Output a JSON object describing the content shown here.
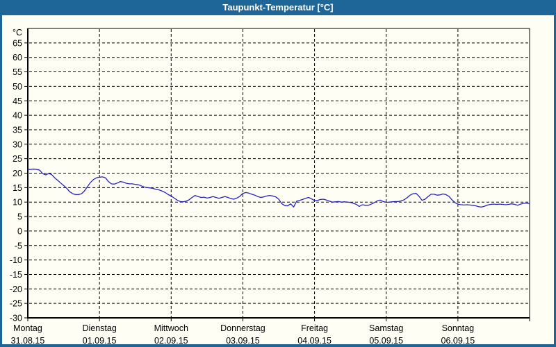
{
  "title_bar": {
    "title": "Taupunkt-Temperatur [°C]"
  },
  "colors": {
    "titlebar_bg": "#1e6598",
    "frame": "#1e6598",
    "content_bg": "#fffef5",
    "grid": "#000000",
    "axis": "#000000",
    "series_line": "#2222c0",
    "title_text": "#ffffff",
    "label_text": "#000000"
  },
  "chart_data": {
    "type": "line",
    "title": "Taupunkt-Temperatur [°C]",
    "grid": "dashed",
    "legend": "none",
    "y_axis": {
      "unit": "°C",
      "min": -30,
      "max": 70,
      "tick_step": 5,
      "tick_labels": [
        65,
        60,
        55,
        50,
        45,
        40,
        35,
        30,
        25,
        20,
        15,
        10,
        5,
        0,
        -5,
        -10,
        -15,
        -20,
        -25,
        -30
      ]
    },
    "x_axis": {
      "hours_total": 168,
      "day_boundaries_hours": [
        24,
        48,
        72,
        96,
        120,
        144
      ],
      "days": [
        {
          "name": "Montag",
          "date": "31.08.15"
        },
        {
          "name": "Dienstag",
          "date": "01.09.15"
        },
        {
          "name": "Mittwoch",
          "date": "02.09.15"
        },
        {
          "name": "Donnerstag",
          "date": "03.09.15"
        },
        {
          "name": "Freitag",
          "date": "04.09.15"
        },
        {
          "name": "Samstag",
          "date": "05.09.15"
        },
        {
          "name": "Sonntag",
          "date": "06.09.15"
        }
      ]
    },
    "series": [
      {
        "name": "Taupunkt",
        "unit": "°C",
        "color": "#2222c0",
        "sampling": {
          "start_hour": 0,
          "step_hours": 1
        },
        "values": [
          21.3,
          21.3,
          21.4,
          21.3,
          21.0,
          19.8,
          19.4,
          19.9,
          19.5,
          18.4,
          17.5,
          16.6,
          15.7,
          14.8,
          13.6,
          12.9,
          12.6,
          12.6,
          12.9,
          13.9,
          15.4,
          16.8,
          17.8,
          18.4,
          18.6,
          18.7,
          18.4,
          17.1,
          16.3,
          16.2,
          16.6,
          17.1,
          16.9,
          16.5,
          16.3,
          16.3,
          16.1,
          16.0,
          15.6,
          15.2,
          15.0,
          14.9,
          14.7,
          14.4,
          14.2,
          13.8,
          13.3,
          12.6,
          12.1,
          11.4,
          10.7,
          10.2,
          10.1,
          10.3,
          10.8,
          11.6,
          12.3,
          11.9,
          11.6,
          11.7,
          11.4,
          11.6,
          11.9,
          11.6,
          11.3,
          11.6,
          11.9,
          11.6,
          11.2,
          11.0,
          11.4,
          12.0,
          13.0,
          13.3,
          13.1,
          12.7,
          12.4,
          11.9,
          11.6,
          11.8,
          12.1,
          12.3,
          12.1,
          11.8,
          11.0,
          9.5,
          8.8,
          8.7,
          9.4,
          8.3,
          10.3,
          10.6,
          10.9,
          11.3,
          11.6,
          11.1,
          10.5,
          10.6,
          10.9,
          11.0,
          10.7,
          10.3,
          10.0,
          10.1,
          10.2,
          10.0,
          10.1,
          10.0,
          9.9,
          9.6,
          9.2,
          8.5,
          9.1,
          8.9,
          8.9,
          9.3,
          9.8,
          10.4,
          10.7,
          10.2,
          9.9,
          10.0,
          10.1,
          10.2,
          10.2,
          10.4,
          10.8,
          11.5,
          12.4,
          12.9,
          13.0,
          12.0,
          10.6,
          11.0,
          11.9,
          12.7,
          12.7,
          12.4,
          12.5,
          12.8,
          12.6,
          12.0,
          10.8,
          9.8,
          9.3,
          9.1,
          9.0,
          9.1,
          9.0,
          8.9,
          8.7,
          8.4,
          8.3,
          8.6,
          9.0,
          9.2,
          9.3,
          9.2,
          9.3,
          9.2,
          9.1,
          9.2,
          9.4,
          9.2,
          8.9,
          9.3,
          9.6,
          9.6,
          9.5
        ]
      }
    ]
  }
}
